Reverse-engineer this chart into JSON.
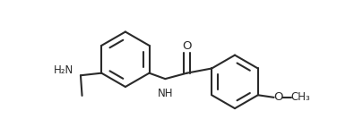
{
  "background": "#ffffff",
  "line_color": "#2a2a2a",
  "line_width": 1.5,
  "font_size": 8.5,
  "figsize": [
    4.06,
    1.52
  ],
  "dpi": 100,
  "xlim": [
    -1.0,
    11.5
  ],
  "ylim": [
    -0.3,
    4.3
  ],
  "NH2_label": "H₂N",
  "NH_label": "NH",
  "O_label": "O",
  "O_methoxy": "O",
  "CH3_label": "CH₃"
}
